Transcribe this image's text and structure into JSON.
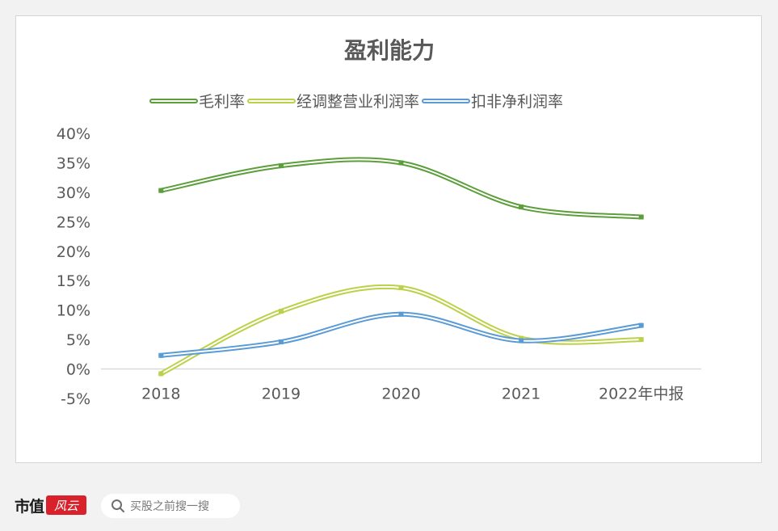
{
  "chart_data": {
    "type": "line",
    "title": "盈利能力",
    "categories": [
      "2018",
      "2019",
      "2020",
      "2021",
      "2022年中报"
    ],
    "ylim": [
      -5,
      40
    ],
    "yticks": [
      "40%",
      "35%",
      "30%",
      "25%",
      "20%",
      "15%",
      "10%",
      "5%",
      "0%",
      "-5%"
    ],
    "ytick_values": [
      40,
      35,
      30,
      25,
      20,
      15,
      10,
      5,
      0,
      -5
    ],
    "legend_position": "top",
    "smooth": true,
    "grid": false,
    "series": [
      {
        "name": "毛利率",
        "values": [
          30.3,
          34.5,
          35.0,
          27.5,
          25.8
        ],
        "color": "#5c9e3b"
      },
      {
        "name": "经调整营业利润率",
        "values": [
          -0.8,
          9.8,
          13.8,
          5.2,
          5.0
        ],
        "color": "#bdd04a"
      },
      {
        "name": "扣非净利润率",
        "values": [
          2.3,
          4.6,
          9.3,
          4.8,
          7.4
        ],
        "color": "#5b9bd5"
      }
    ]
  },
  "footer": {
    "brand_text": "市值",
    "brand_seal": "风云",
    "search_icon": "search-icon",
    "search_placeholder": "买股之前搜一搜"
  }
}
